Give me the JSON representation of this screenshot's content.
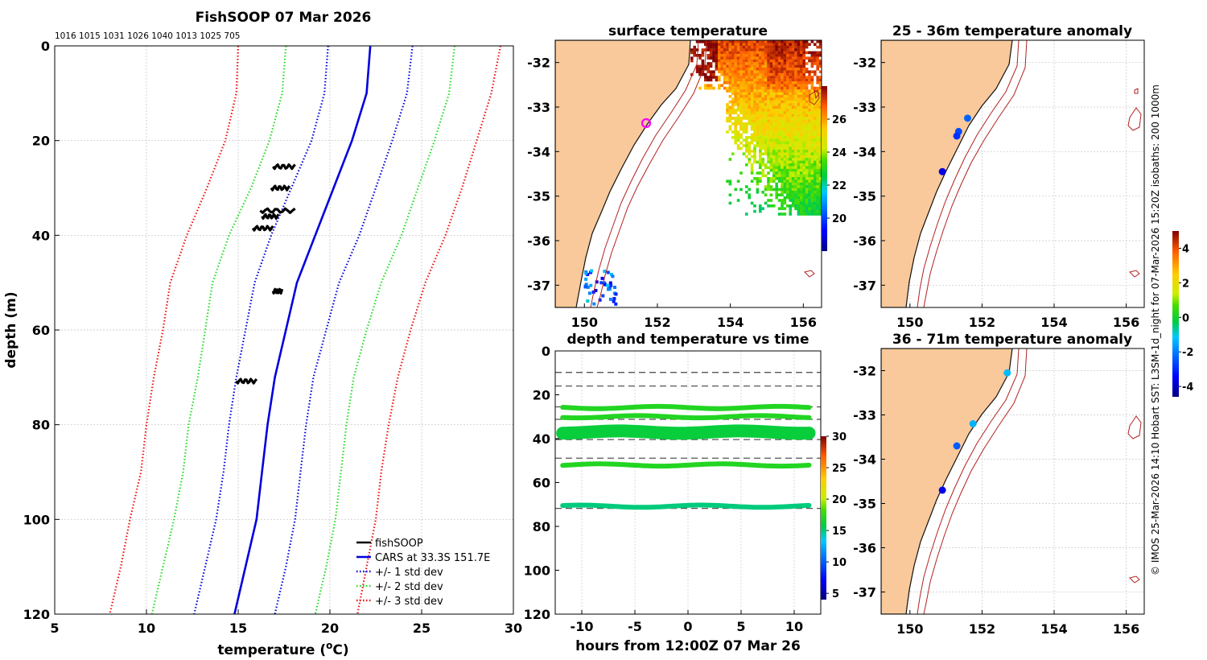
{
  "chart_data": [
    {
      "type": "line",
      "title": "FishSOOP 07 Mar 2026",
      "subtitle": "1016 1015 1031 1026 1040 1013 1025 705",
      "xlabel": "temperature (°C)",
      "ylabel": "depth (m)",
      "xlim": [
        5,
        30
      ],
      "ylim": [
        0,
        120
      ],
      "xticks": [
        "5",
        "10",
        "15",
        "20",
        "25",
        "30"
      ],
      "yticks": [
        "0",
        "20",
        "40",
        "60",
        "80",
        "100",
        "120"
      ],
      "depth_profile": [
        0,
        10,
        20,
        30,
        40,
        50,
        60,
        70,
        80,
        90,
        100,
        110,
        120
      ],
      "series": [
        {
          "name": "CARS at 33.3S 151.7E",
          "color": "#0000dd",
          "style": "solid",
          "values": [
            22.2,
            22.0,
            21.2,
            20.2,
            19.2,
            18.2,
            17.6,
            17.0,
            16.6,
            16.3,
            16.0,
            15.4,
            14.8
          ]
        },
        {
          "name": "+/- 1 std dev",
          "color": "#0000dd",
          "style": "dotted",
          "values": [
            19.9,
            19.7,
            19.0,
            17.9,
            16.8,
            15.9,
            15.4,
            14.9,
            14.5,
            14.2,
            13.8,
            13.2,
            12.6
          ]
        },
        {
          "name": "+/- 1 std dev",
          "color": "#0000dd",
          "style": "dotted",
          "values": [
            24.5,
            24.2,
            23.4,
            22.5,
            21.6,
            20.5,
            19.8,
            19.1,
            18.7,
            18.4,
            18.1,
            17.6,
            17.0
          ]
        },
        {
          "name": "+/- 2 std dev",
          "color": "#22dd22",
          "style": "dotted",
          "values": [
            17.6,
            17.4,
            16.7,
            15.7,
            14.5,
            13.6,
            13.2,
            12.8,
            12.3,
            12.0,
            11.5,
            10.9,
            10.3
          ]
        },
        {
          "name": "+/- 2 std dev",
          "color": "#22dd22",
          "style": "dotted",
          "values": [
            26.8,
            26.5,
            25.7,
            24.8,
            23.9,
            22.8,
            22.0,
            21.3,
            20.9,
            20.6,
            20.3,
            19.8,
            19.2
          ]
        },
        {
          "name": "+/- 3 std dev",
          "color": "#ee1111",
          "style": "dotted",
          "values": [
            15.0,
            14.9,
            14.3,
            13.3,
            12.2,
            11.3,
            10.9,
            10.4,
            10.0,
            9.7,
            9.1,
            8.6,
            8.0
          ]
        },
        {
          "name": "+/- 3 std dev",
          "color": "#ee1111",
          "style": "dotted",
          "values": [
            29.3,
            28.8,
            28.0,
            27.2,
            26.3,
            25.2,
            24.4,
            23.7,
            23.2,
            22.8,
            22.5,
            22.0,
            21.5
          ]
        }
      ],
      "fishsoop_clusters": [
        {
          "depth": 25.5,
          "t_min": 16.9,
          "t_max": 18.1
        },
        {
          "depth": 30.0,
          "t_min": 16.8,
          "t_max": 17.8
        },
        {
          "depth": 34.8,
          "t_min": 16.2,
          "t_max": 18.1
        },
        {
          "depth": 36.0,
          "t_min": 16.3,
          "t_max": 17.2
        },
        {
          "depth": 38.5,
          "t_min": 15.8,
          "t_max": 16.9
        },
        {
          "depth": 51.8,
          "t_min": 16.9,
          "t_max": 17.4
        },
        {
          "depth": 70.8,
          "t_min": 14.9,
          "t_max": 16.0
        }
      ],
      "legend": {
        "placement": "bottom-right",
        "entries": [
          "fishSOOP",
          "CARS at 33.3S 151.7E",
          "+/- 1 std dev",
          "+/- 2 std dev",
          "+/- 3 std dev"
        ]
      }
    },
    {
      "type": "heatmap",
      "title": "surface temperature",
      "xticks": [
        "150",
        "152",
        "154",
        "156"
      ],
      "yticks": [
        "-32",
        "-33",
        "-34",
        "-35",
        "-36",
        "-37"
      ],
      "xlim": [
        149.2,
        156.5
      ],
      "ylim": [
        -37.5,
        -31.5
      ],
      "colorbar": {
        "ticks": [
          "26",
          "24",
          "22",
          "20"
        ],
        "range": [
          18,
          28
        ]
      },
      "marker": {
        "lon": 151.7,
        "lat": -33.25
      }
    },
    {
      "type": "scatter",
      "title": "depth and temperature vs time",
      "xlabel": "hours from 12:00Z 07 Mar 26",
      "xticks": [
        "-10",
        "-5",
        "0",
        "5",
        "10"
      ],
      "yticks": [
        "0",
        "20",
        "40",
        "60",
        "80",
        "100",
        "120"
      ],
      "xlim": [
        -12.5,
        12.5
      ],
      "ylim": [
        0,
        120
      ],
      "dashed_depths": [
        9.8,
        16.0,
        25.5,
        31.2,
        40.4,
        48.9,
        71.8
      ],
      "bands": [
        {
          "depth": 25.8,
          "temp": 17
        },
        {
          "depth": 30.0,
          "temp": 17
        },
        {
          "depth": 37.0,
          "temp": 16
        },
        {
          "depth": 52.0,
          "temp": 17
        },
        {
          "depth": 70.8,
          "temp": 15
        }
      ],
      "colorbar": {
        "ticks": [
          "30",
          "25",
          "20",
          "15",
          "10",
          "5"
        ],
        "range": [
          4,
          30
        ]
      }
    },
    {
      "type": "scatter",
      "title": "25 - 36m temperature anomaly",
      "xticks": [
        "150",
        "152",
        "154",
        "156"
      ],
      "yticks": [
        "-32",
        "-33",
        "-34",
        "-35",
        "-36",
        "-37"
      ],
      "points": [
        {
          "lon": 151.6,
          "lat": -33.25,
          "anomaly": -2.3
        },
        {
          "lon": 151.35,
          "lat": -33.55,
          "anomaly": -2.6
        },
        {
          "lon": 151.3,
          "lat": -33.65,
          "anomaly": -2.9
        },
        {
          "lon": 150.9,
          "lat": -34.45,
          "anomaly": -3.7
        }
      ]
    },
    {
      "type": "scatter",
      "title": "36 - 71m temperature anomaly",
      "xticks": [
        "150",
        "152",
        "154",
        "156"
      ],
      "yticks": [
        "-32",
        "-33",
        "-34",
        "-35",
        "-36",
        "-37"
      ],
      "points": [
        {
          "lon": 152.7,
          "lat": -32.05,
          "anomaly": -1.3
        },
        {
          "lon": 151.75,
          "lat": -33.2,
          "anomaly": -1.4
        },
        {
          "lon": 151.3,
          "lat": -33.7,
          "anomaly": -2.4
        },
        {
          "lon": 150.9,
          "lat": -34.7,
          "anomaly": -3.6
        }
      ],
      "colorbar": {
        "ticks": [
          "4",
          "2",
          "0",
          "-2",
          "-4"
        ],
        "range": [
          -4.6,
          5.0
        ]
      }
    }
  ],
  "side_caption": "© IMOS 25-Mar-2026 14:10 Hobart SST: L3SM-1d_night for 07-Mar-2026 15:20Z isobaths: 200  1000m",
  "colors": {
    "land": "#f9c99b",
    "coast": "#111111",
    "isobath": "#b22222",
    "grid": "#b8b8b8",
    "marker": "#ff00ff"
  }
}
